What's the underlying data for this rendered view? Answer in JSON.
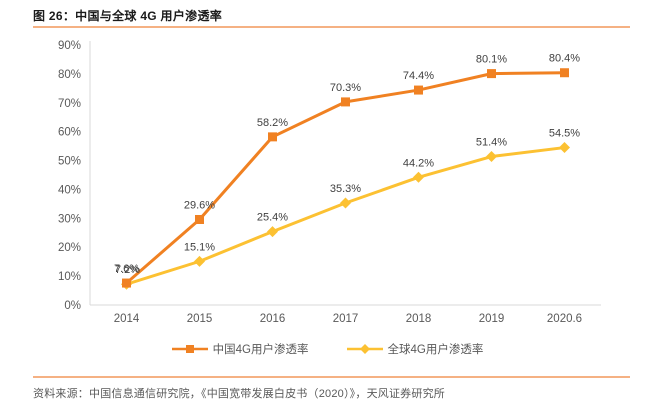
{
  "figure": {
    "title": "图 26：中国与全球 4G 用户渗透率",
    "source": "资料来源：中国信息通信研究院，《中国宽带发展白皮书（2020）》，天风证券研究所"
  },
  "colors": {
    "accent_rule": "#F5B183",
    "axis_line": "#D9D9D9",
    "axis_text": "#595959",
    "data_label_text": "#404040",
    "china_series": "#F08122",
    "global_series": "#FCC132"
  },
  "chart_data": {
    "type": "line",
    "title": "图 26：中国与全球 4G 用户渗透率",
    "categories": [
      "2014",
      "2015",
      "2016",
      "2017",
      "2018",
      "2019",
      "2020.6"
    ],
    "series": [
      {
        "id": "china-4g-penetration",
        "name": "中国4G用户渗透率",
        "marker": "square",
        "color": "#F08122",
        "values": [
          7.6,
          29.6,
          58.2,
          70.3,
          74.4,
          80.1,
          80.4
        ],
        "labels": [
          "7.6%",
          "29.6%",
          "58.2%",
          "70.3%",
          "74.4%",
          "80.1%",
          "80.4%"
        ]
      },
      {
        "id": "global-4g-penetration",
        "name": "全球4G用户渗透率",
        "marker": "diamond",
        "color": "#FCC132",
        "values": [
          7.2,
          15.1,
          25.4,
          35.3,
          44.2,
          51.4,
          54.5
        ],
        "labels": [
          "7.2%",
          "15.1%",
          "25.4%",
          "35.3%",
          "44.2%",
          "51.4%",
          "54.5%"
        ]
      }
    ],
    "xlabel": "",
    "ylabel": "",
    "ylim": [
      0,
      90
    ],
    "ytick_step": 10,
    "ytick_labels": [
      "0%",
      "10%",
      "20%",
      "30%",
      "40%",
      "50%",
      "60%",
      "70%",
      "80%",
      "90%"
    ],
    "grid": false,
    "legend_position": "bottom"
  }
}
